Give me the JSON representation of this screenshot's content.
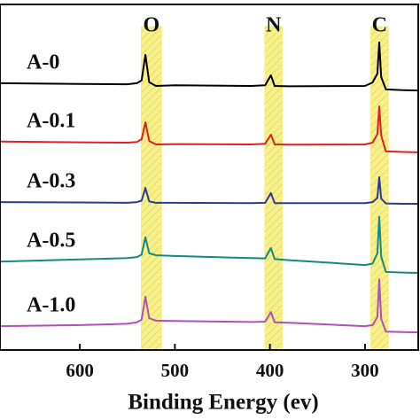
{
  "chart_data": {
    "type": "line",
    "x_label": "Binding Energy (ev)",
    "xlim": [
      684,
      244
    ],
    "ylim": [
      0,
      100
    ],
    "xticks": [
      600,
      500,
      400,
      300
    ],
    "x": [
      684,
      600,
      550,
      540,
      535,
      531,
      527,
      520,
      500,
      420,
      405,
      399,
      395,
      380,
      300,
      292,
      287,
      285,
      283,
      278,
      260,
      244
    ],
    "series": [
      {
        "name": "A-0",
        "color": "#000000",
        "values": [
          77.2,
          77.0,
          76.9,
          77.2,
          78.0,
          85.4,
          77.5,
          76.4,
          76.6,
          76.4,
          76.6,
          79.5,
          76.4,
          76.3,
          76.4,
          77.4,
          80.0,
          89.0,
          79.0,
          75.4,
          75.2,
          75.1
        ]
      },
      {
        "name": "A-0.1",
        "color": "#e02020",
        "values": [
          60.3,
          60.1,
          60.0,
          60.2,
          61.0,
          65.9,
          60.5,
          59.5,
          59.6,
          59.5,
          59.7,
          62.3,
          59.5,
          59.4,
          59.5,
          60.0,
          62.5,
          70.5,
          62.0,
          57.5,
          57.3,
          57.2
        ]
      },
      {
        "name": "A-0.3",
        "color": "#2a3a9a",
        "values": [
          42.8,
          42.7,
          42.6,
          42.8,
          43.2,
          46.9,
          43.0,
          42.6,
          42.6,
          42.5,
          42.6,
          45.4,
          42.5,
          42.5,
          42.5,
          42.8,
          44.0,
          50.0,
          43.8,
          42.4,
          42.3,
          42.3
        ]
      },
      {
        "name": "A-0.5",
        "color": "#138a80",
        "values": [
          25.6,
          26.2,
          26.6,
          26.9,
          27.6,
          32.6,
          28.0,
          27.4,
          27.2,
          26.6,
          26.5,
          29.5,
          26.3,
          26.0,
          24.6,
          25.0,
          28.0,
          38.5,
          27.0,
          22.6,
          22.4,
          22.3
        ]
      },
      {
        "name": "A-1.0",
        "color": "#b050b8",
        "values": [
          6.9,
          7.2,
          7.6,
          8.0,
          8.8,
          15.4,
          9.2,
          8.5,
          8.4,
          8.1,
          8.2,
          11.0,
          8.0,
          7.9,
          6.9,
          7.2,
          9.5,
          20.5,
          9.0,
          5.3,
          5.2,
          5.1
        ]
      }
    ],
    "bands": [
      {
        "label": "O",
        "range": [
          535.4,
          514.1
        ],
        "color": "#f4ee8a"
      },
      {
        "label": "N",
        "range": [
          405.4,
          386.9
        ],
        "color": "#f4ee8a"
      },
      {
        "label": "C",
        "range": [
          294.0,
          275.5
        ],
        "color": "#f4ee8a"
      }
    ]
  }
}
